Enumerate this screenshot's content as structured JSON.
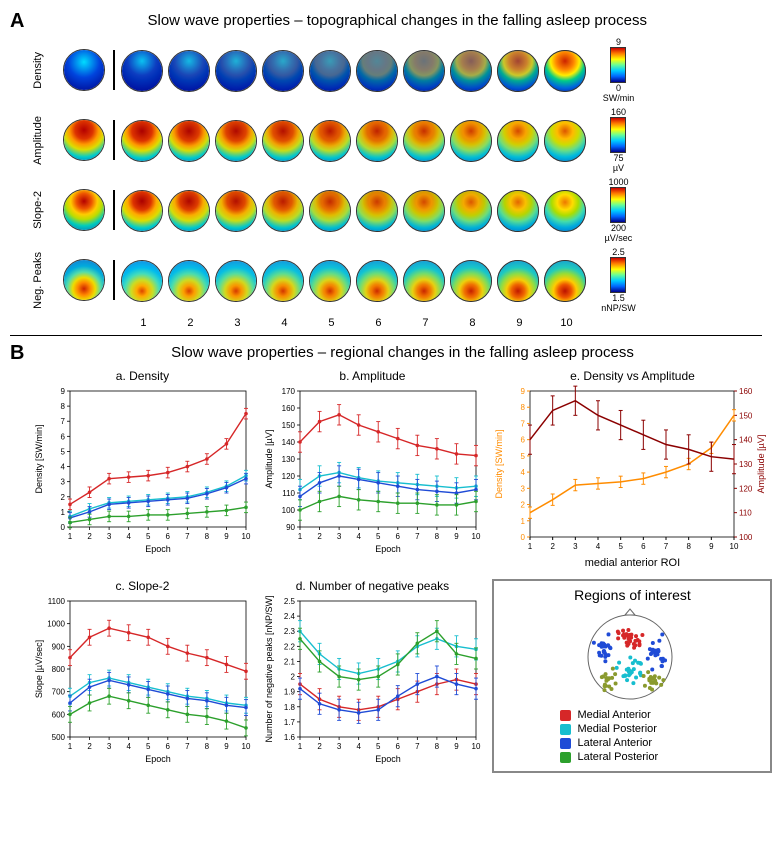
{
  "panelA": {
    "label": "A",
    "title": "Slow wave properties – topographical changes in the falling asleep process",
    "epochs": [
      1,
      2,
      3,
      4,
      5,
      6,
      7,
      8,
      9,
      10
    ],
    "rows": [
      {
        "name": "Density",
        "avg_gradient": "radial-gradient(circle at 50% 30%, #00ddff 0%, #0044dd 45%, #000088 100%)",
        "sequence_gradient_start": "radial-gradient(circle at 50% 25%, #00ccff 0%, #0033cc 40%, #000088 100%)",
        "sequence_gradient_end": "radial-gradient(circle at 50% 25%, #cc2200 0%, #ff8800 25%, #ffee00 40%, #00cc88 55%, #0066dd 75%, #000099 100%)",
        "progression": [
          0.05,
          0.1,
          0.15,
          0.2,
          0.28,
          0.4,
          0.52,
          0.65,
          0.8,
          1.0
        ],
        "colorbar": {
          "max": "9",
          "min": "0",
          "unit": "SW/min"
        }
      },
      {
        "name": "Amplitude",
        "avg_gradient": "radial-gradient(circle at 50% 25%, #b40000 0%, #dd3300 25%, #ff9900 40%, #dddd00 55%, #00cccc 75%, #0055cc 100%)",
        "sequence_gradient_start": "radial-gradient(circle at 50% 25%, #aa0000 0%, #dd3300 28%, #ff9900 42%, #dddd00 55%, #00cccc 75%, #0055cc 100%)",
        "sequence_gradient_end": "radial-gradient(circle at 50% 25%, #dd5500 0%, #ffbb00 22%, #ccdd00 38%, #66dd88 55%, #00bbdd 72%, #0055cc 100%)",
        "progression": [
          0.0,
          0.05,
          0.1,
          0.18,
          0.28,
          0.4,
          0.55,
          0.7,
          0.85,
          1.0
        ],
        "colorbar": {
          "max": "160",
          "min": "75",
          "unit": "µV"
        }
      },
      {
        "name": "Slope-2",
        "avg_gradient": "radial-gradient(circle at 50% 28%, #b40000 0%, #ee5500 22%, #ffcc00 38%, #bbdd00 52%, #00ccbb 70%, #0055cc 100%)",
        "sequence_gradient_start": "radial-gradient(circle at 50% 25%, #aa0000 0%, #dd3300 25%, #ffaa00 40%, #dddd00 55%, #00cccc 75%, #0055cc 100%)",
        "sequence_gradient_end": "radial-gradient(circle at 50% 28%, #ee7700 0%, #ffdd00 22%, #aadd00 38%, #44ddaa 55%, #00aadd 72%, #0055cc 100%)",
        "progression": [
          0.0,
          0.05,
          0.12,
          0.22,
          0.35,
          0.48,
          0.6,
          0.72,
          0.85,
          1.0
        ],
        "colorbar": {
          "max": "1000",
          "min": "200",
          "unit": "µV/sec"
        }
      },
      {
        "name": "Neg. Peaks",
        "avg_gradient": "radial-gradient(circle at 50% 72%, #cc2200 0%, #ff8800 18%, #eedd00 32%, #55ddaa 48%, #00aadd 65%, #2266cc 100%)",
        "sequence_gradient_start": "radial-gradient(circle at 50% 75%, #dd4400 0%, #ffaa00 15%, #ccdd22 30%, #44ddbb 48%, #00bbee 65%, #2277dd 100%)",
        "sequence_gradient_end": "radial-gradient(circle at 50% 75%, #bb1100 0%, #ee5500 18%, #ffcc00 32%, #99dd33 48%, #22ccbb 65%, #1188dd 100%)",
        "progression": [
          0.0,
          0.1,
          0.2,
          0.3,
          0.4,
          0.5,
          0.6,
          0.72,
          0.85,
          1.0
        ],
        "colorbar": {
          "max": "2.5",
          "min": "1.5",
          "unit": "nNP/SW"
        }
      }
    ]
  },
  "panelB": {
    "label": "B",
    "title": "Slow wave properties – regional changes in the falling asleep process",
    "x_label": "Epoch",
    "x_ticks": [
      1,
      2,
      3,
      4,
      5,
      6,
      7,
      8,
      9,
      10
    ],
    "regions": [
      {
        "key": "MA",
        "name": "Medial Anterior",
        "color": "#d62728"
      },
      {
        "key": "MP",
        "name": "Medial Posterior",
        "color": "#17becf"
      },
      {
        "key": "LA",
        "name": "Lateral Anterior",
        "color": "#1f4bd6"
      },
      {
        "key": "LP",
        "name": "Lateral Posterior",
        "color": "#2ca02c"
      }
    ],
    "charts": {
      "density": {
        "title": "a. Density",
        "ylabel": "Density [SW/min]",
        "ylim": [
          0,
          9
        ],
        "yticks": [
          0,
          1,
          2,
          3,
          4,
          5,
          6,
          7,
          8,
          9
        ],
        "err": 0.35,
        "series": {
          "MA": [
            1.5,
            2.3,
            3.2,
            3.3,
            3.4,
            3.6,
            4.0,
            4.5,
            5.5,
            7.5
          ],
          "MP": [
            0.7,
            1.2,
            1.6,
            1.7,
            1.8,
            1.9,
            2.0,
            2.3,
            2.7,
            3.4
          ],
          "LA": [
            0.6,
            1.0,
            1.5,
            1.6,
            1.7,
            1.8,
            1.9,
            2.2,
            2.6,
            3.2
          ],
          "LP": [
            0.3,
            0.5,
            0.7,
            0.7,
            0.8,
            0.8,
            0.9,
            1.0,
            1.1,
            1.3
          ]
        }
      },
      "amplitude": {
        "title": "b. Amplitude",
        "ylabel": "Amplitude [µV]",
        "ylim": [
          90,
          170
        ],
        "yticks": [
          90,
          100,
          110,
          120,
          130,
          140,
          150,
          160,
          170
        ],
        "err": 6,
        "series": {
          "MA": [
            140,
            152,
            156,
            150,
            146,
            142,
            138,
            136,
            133,
            132
          ],
          "MP": [
            112,
            120,
            122,
            119,
            117,
            116,
            115,
            114,
            113,
            114
          ],
          "LA": [
            108,
            116,
            120,
            118,
            116,
            114,
            112,
            111,
            110,
            112
          ],
          "LP": [
            100,
            105,
            108,
            106,
            105,
            104,
            104,
            103,
            103,
            105
          ]
        }
      },
      "slope": {
        "title": "c. Slope-2",
        "ylabel": "Slope [µV/sec]",
        "ylim": [
          500,
          1100
        ],
        "yticks": [
          500,
          600,
          700,
          800,
          900,
          1000,
          1100
        ],
        "err": 35,
        "series": {
          "MA": [
            850,
            940,
            980,
            960,
            940,
            900,
            870,
            850,
            820,
            790
          ],
          "MP": [
            680,
            740,
            760,
            740,
            720,
            700,
            680,
            670,
            650,
            640
          ],
          "LA": [
            650,
            720,
            750,
            730,
            710,
            690,
            670,
            660,
            640,
            630
          ],
          "LP": [
            600,
            650,
            680,
            660,
            640,
            620,
            600,
            590,
            570,
            540
          ]
        }
      },
      "negpeaks": {
        "title": "d. Number of negative peaks",
        "ylabel": "Number of negative peaks [nNP/SW]",
        "ylim": [
          1.6,
          2.5
        ],
        "yticks": [
          1.6,
          1.7,
          1.8,
          1.9,
          2.0,
          2.1,
          2.2,
          2.3,
          2.4,
          2.5
        ],
        "err": 0.07,
        "series": {
          "MA": [
            1.95,
            1.85,
            1.8,
            1.78,
            1.8,
            1.85,
            1.9,
            1.95,
            1.98,
            1.95
          ],
          "MP": [
            2.3,
            2.15,
            2.05,
            2.02,
            2.05,
            2.1,
            2.2,
            2.25,
            2.2,
            2.18
          ],
          "LA": [
            1.92,
            1.82,
            1.78,
            1.76,
            1.78,
            1.87,
            1.95,
            2.0,
            1.95,
            1.92
          ],
          "LP": [
            2.25,
            2.1,
            2.0,
            1.98,
            2.0,
            2.08,
            2.22,
            2.3,
            2.15,
            2.12
          ]
        }
      },
      "dva": {
        "title": "e. Density vs Amplitude",
        "xlabel": "medial anterior ROI",
        "left": {
          "label": "Density [SW/min]",
          "color": "#ff8c00",
          "ylim": [
            0,
            9
          ],
          "yticks": [
            0,
            1,
            2,
            3,
            4,
            5,
            6,
            7,
            8,
            9
          ],
          "values": [
            1.5,
            2.3,
            3.2,
            3.3,
            3.4,
            3.6,
            4.0,
            4.5,
            5.5,
            7.5
          ],
          "err": 0.35
        },
        "right": {
          "label": "Amplitude [µV]",
          "color": "#8b0000",
          "ylim": [
            100,
            160
          ],
          "yticks": [
            100,
            110,
            120,
            130,
            140,
            150,
            160
          ],
          "values": [
            140,
            152,
            156,
            150,
            146,
            142,
            138,
            136,
            133,
            132
          ],
          "err": 6
        }
      }
    },
    "roi_legend_title": "Regions of interest"
  }
}
